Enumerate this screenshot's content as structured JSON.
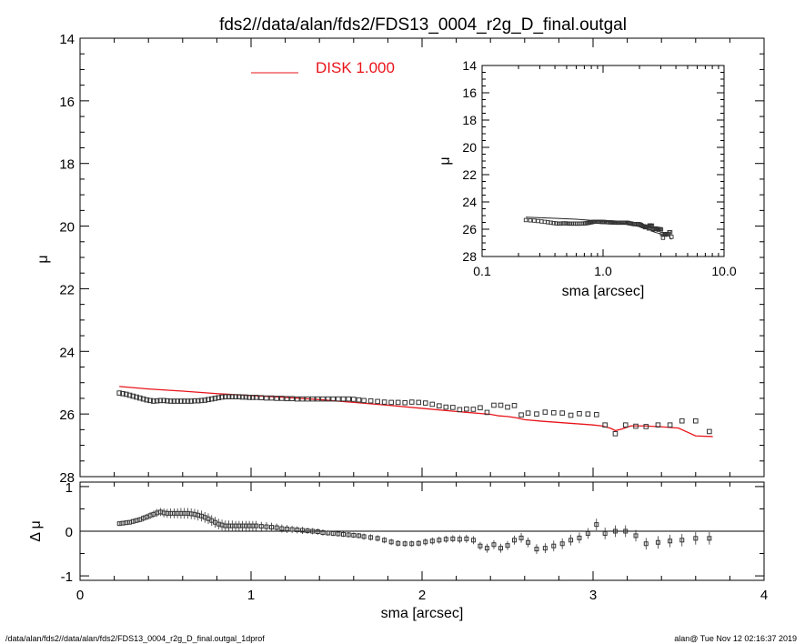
{
  "title": "fds2//data/alan/fds2/FDS13_0004_r2g_D_final.outgal",
  "footer_left": "/data/alan/fds2//data/alan/fds2/FDS13_0004_r2g_D_final.outgal_1dprof",
  "footer_right": "alan@  Tue Nov 12 02:16:37 2019",
  "colors": {
    "model": "#e8141a",
    "data": "#333333",
    "axes": "#000000"
  },
  "chart_data": [
    {
      "id": "main",
      "type": "scatter",
      "xlabel": "",
      "ylabel": "μ",
      "xlim": [
        0,
        4
      ],
      "ylim": [
        28,
        14
      ],
      "y_inverted": true,
      "yticks": [
        "14",
        "16",
        "18",
        "20",
        "22",
        "24",
        "26",
        "28"
      ],
      "legend": {
        "label": "DISK  1.000",
        "placement": "top"
      },
      "series": [
        {
          "name": "data",
          "marker": "square",
          "x": [
            0.23,
            0.25,
            0.27,
            0.29,
            0.31,
            0.33,
            0.35,
            0.37,
            0.39,
            0.41,
            0.43,
            0.45,
            0.47,
            0.49,
            0.51,
            0.53,
            0.55,
            0.57,
            0.59,
            0.61,
            0.63,
            0.65,
            0.67,
            0.69,
            0.71,
            0.73,
            0.75,
            0.77,
            0.79,
            0.81,
            0.83,
            0.85,
            0.87,
            0.89,
            0.91,
            0.93,
            0.95,
            0.97,
            0.99,
            1.01,
            1.03,
            1.06,
            1.09,
            1.12,
            1.15,
            1.18,
            1.21,
            1.24,
            1.27,
            1.3,
            1.33,
            1.36,
            1.39,
            1.42,
            1.45,
            1.48,
            1.51,
            1.54,
            1.57,
            1.6,
            1.63,
            1.66,
            1.7,
            1.74,
            1.78,
            1.82,
            1.86,
            1.9,
            1.94,
            1.98,
            2.02,
            2.06,
            2.1,
            2.14,
            2.18,
            2.22,
            2.26,
            2.3,
            2.34,
            2.38,
            2.42,
            2.46,
            2.5,
            2.54,
            2.58,
            2.62,
            2.67,
            2.72,
            2.77,
            2.82,
            2.87,
            2.92,
            2.97,
            3.02,
            3.07,
            3.13,
            3.19,
            3.25,
            3.31,
            3.38,
            3.45,
            3.52,
            3.6,
            3.68
          ],
          "y": [
            25.33,
            25.35,
            25.37,
            25.4,
            25.43,
            25.46,
            25.49,
            25.52,
            25.55,
            25.57,
            25.59,
            25.58,
            25.57,
            25.57,
            25.58,
            25.59,
            25.59,
            25.59,
            25.59,
            25.59,
            25.59,
            25.59,
            25.58,
            25.58,
            25.57,
            25.56,
            25.54,
            25.52,
            25.5,
            25.48,
            25.46,
            25.45,
            25.45,
            25.45,
            25.45,
            25.45,
            25.46,
            25.46,
            25.47,
            25.47,
            25.47,
            25.48,
            25.49,
            25.49,
            25.5,
            25.5,
            25.51,
            25.51,
            25.52,
            25.52,
            25.52,
            25.52,
            25.52,
            25.52,
            25.52,
            25.52,
            25.52,
            25.52,
            25.52,
            25.53,
            25.55,
            25.57,
            25.58,
            25.6,
            25.62,
            25.63,
            25.63,
            25.64,
            25.62,
            25.63,
            25.65,
            25.69,
            25.74,
            25.78,
            25.79,
            25.86,
            25.84,
            25.85,
            25.8,
            25.95,
            25.72,
            25.72,
            25.78,
            25.73,
            26.03,
            25.97,
            26.0,
            25.94,
            25.96,
            25.97,
            26.04,
            25.99,
            26.0,
            26.02,
            26.35,
            26.63,
            26.35,
            26.39,
            26.4,
            26.35,
            26.35,
            26.22,
            26.22,
            26.56
          ]
        },
        {
          "name": "model",
          "x": [
            0.23,
            0.4,
            0.6,
            0.8,
            1.0,
            1.2,
            1.4,
            1.6,
            1.8,
            2.0,
            2.2,
            2.4,
            2.45,
            2.5,
            2.55,
            2.6,
            2.7,
            2.8,
            2.9,
            3.0,
            3.05,
            3.1,
            3.13,
            3.17,
            3.22,
            3.3,
            3.4,
            3.5,
            3.6,
            3.7
          ],
          "y": [
            25.12,
            25.2,
            25.27,
            25.35,
            25.41,
            25.47,
            25.54,
            25.63,
            25.72,
            25.82,
            25.92,
            26.01,
            26.06,
            26.08,
            26.12,
            26.18,
            26.23,
            26.27,
            26.31,
            26.35,
            26.38,
            26.45,
            26.53,
            26.48,
            26.38,
            26.38,
            26.41,
            26.45,
            26.7,
            26.72
          ]
        }
      ]
    },
    {
      "id": "residual",
      "type": "scatter",
      "xlabel": "sma [arcsec]",
      "ylabel": "Δ μ",
      "xlim": [
        0,
        4
      ],
      "ylim": [
        -1.1,
        1.1
      ],
      "xticks": [
        "0",
        "1",
        "2",
        "3",
        "4"
      ],
      "yticks": [
        "1",
        "0",
        "-1"
      ],
      "series": [
        {
          "name": "residual",
          "marker": "square",
          "x": [
            0.23,
            0.25,
            0.27,
            0.29,
            0.31,
            0.33,
            0.35,
            0.37,
            0.39,
            0.41,
            0.43,
            0.45,
            0.47,
            0.49,
            0.51,
            0.53,
            0.55,
            0.57,
            0.59,
            0.61,
            0.63,
            0.65,
            0.67,
            0.69,
            0.71,
            0.73,
            0.75,
            0.77,
            0.79,
            0.81,
            0.83,
            0.85,
            0.87,
            0.89,
            0.91,
            0.93,
            0.95,
            0.97,
            0.99,
            1.01,
            1.03,
            1.06,
            1.09,
            1.12,
            1.15,
            1.18,
            1.21,
            1.24,
            1.27,
            1.3,
            1.33,
            1.36,
            1.39,
            1.42,
            1.45,
            1.48,
            1.51,
            1.54,
            1.57,
            1.6,
            1.63,
            1.66,
            1.7,
            1.74,
            1.78,
            1.82,
            1.86,
            1.9,
            1.94,
            1.98,
            2.02,
            2.06,
            2.1,
            2.14,
            2.18,
            2.22,
            2.26,
            2.3,
            2.34,
            2.38,
            2.42,
            2.46,
            2.5,
            2.54,
            2.58,
            2.62,
            2.67,
            2.72,
            2.77,
            2.82,
            2.87,
            2.92,
            2.97,
            3.02,
            3.07,
            3.13,
            3.19,
            3.25,
            3.31,
            3.38,
            3.45,
            3.52,
            3.6,
            3.68
          ],
          "y": [
            0.17,
            0.18,
            0.19,
            0.2,
            0.22,
            0.24,
            0.26,
            0.29,
            0.32,
            0.35,
            0.38,
            0.41,
            0.43,
            0.41,
            0.4,
            0.4,
            0.4,
            0.4,
            0.4,
            0.4,
            0.4,
            0.39,
            0.38,
            0.36,
            0.34,
            0.31,
            0.28,
            0.24,
            0.2,
            0.16,
            0.14,
            0.12,
            0.12,
            0.12,
            0.12,
            0.12,
            0.12,
            0.12,
            0.12,
            0.12,
            0.12,
            0.11,
            0.1,
            0.09,
            0.08,
            0.06,
            0.05,
            0.04,
            0.03,
            0.02,
            0.01,
            0.0,
            -0.01,
            -0.03,
            -0.04,
            -0.05,
            -0.06,
            -0.07,
            -0.08,
            -0.09,
            -0.1,
            -0.12,
            -0.14,
            -0.16,
            -0.2,
            -0.24,
            -0.27,
            -0.28,
            -0.28,
            -0.27,
            -0.24,
            -0.22,
            -0.2,
            -0.18,
            -0.17,
            -0.18,
            -0.17,
            -0.2,
            -0.33,
            -0.38,
            -0.3,
            -0.38,
            -0.32,
            -0.2,
            -0.15,
            -0.25,
            -0.4,
            -0.38,
            -0.33,
            -0.28,
            -0.2,
            -0.15,
            -0.05,
            0.15,
            -0.05,
            0.0,
            0.0,
            -0.1,
            -0.28,
            -0.25,
            -0.22,
            -0.2,
            -0.16,
            -0.16
          ],
          "err": [
            0.05,
            0.05,
            0.05,
            0.05,
            0.06,
            0.06,
            0.06,
            0.07,
            0.07,
            0.08,
            0.08,
            0.09,
            0.09,
            0.1,
            0.1,
            0.11,
            0.11,
            0.11,
            0.12,
            0.12,
            0.12,
            0.12,
            0.12,
            0.12,
            0.12,
            0.12,
            0.12,
            0.12,
            0.12,
            0.12,
            0.12,
            0.12,
            0.12,
            0.12,
            0.11,
            0.11,
            0.11,
            0.11,
            0.11,
            0.11,
            0.11,
            0.1,
            0.1,
            0.1,
            0.09,
            0.09,
            0.09,
            0.08,
            0.08,
            0.08,
            0.07,
            0.07,
            0.07,
            0.07,
            0.06,
            0.06,
            0.06,
            0.06,
            0.06,
            0.06,
            0.06,
            0.07,
            0.07,
            0.07,
            0.07,
            0.07,
            0.07,
            0.07,
            0.07,
            0.07,
            0.08,
            0.08,
            0.08,
            0.08,
            0.08,
            0.09,
            0.09,
            0.09,
            0.09,
            0.1,
            0.1,
            0.1,
            0.1,
            0.1,
            0.11,
            0.11,
            0.11,
            0.11,
            0.12,
            0.12,
            0.12,
            0.12,
            0.12,
            0.13,
            0.13,
            0.13,
            0.13,
            0.13,
            0.13,
            0.14,
            0.14,
            0.14,
            0.14,
            0.14
          ]
        }
      ]
    },
    {
      "id": "inset",
      "type": "scatter",
      "xlabel": "sma [arcsec]",
      "ylabel": "μ",
      "xscale": "log",
      "xlim": [
        0.1,
        10.0
      ],
      "ylim": [
        28,
        14
      ],
      "y_inverted": true,
      "xticks": [
        "0.1",
        "1.0",
        "10.0"
      ],
      "yticks": [
        "14",
        "16",
        "18",
        "20",
        "22",
        "24",
        "26",
        "28"
      ],
      "series": [
        {
          "name": "data",
          "marker": "square",
          "source": "main.data"
        },
        {
          "name": "model",
          "source": "main.model"
        }
      ]
    }
  ]
}
